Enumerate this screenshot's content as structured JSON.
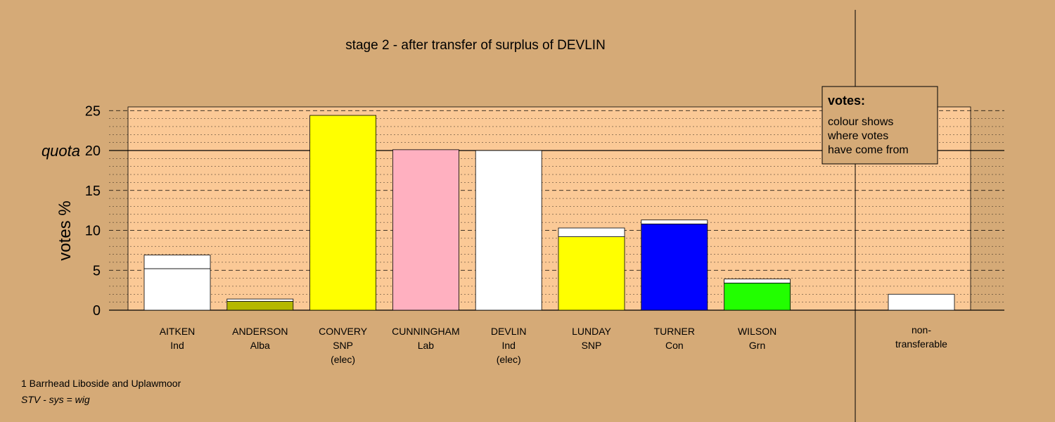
{
  "chart_data": {
    "type": "bar",
    "title": "stage 2 - after transfer of surplus of DEVLIN",
    "ylabel": "votes %",
    "quota_label": "quota",
    "quota": 20,
    "ylim": [
      0,
      25
    ],
    "yticks": [
      0,
      5,
      10,
      15,
      20,
      25
    ],
    "categories": [
      {
        "name": "AITKEN",
        "party": "Ind",
        "note": ""
      },
      {
        "name": "ANDERSON",
        "party": "Alba",
        "note": ""
      },
      {
        "name": "CONVERY",
        "party": "SNP",
        "note": "(elec)"
      },
      {
        "name": "CUNNINGHAM",
        "party": "Lab",
        "note": ""
      },
      {
        "name": "DEVLIN",
        "party": "Ind",
        "note": "(elec)"
      },
      {
        "name": "LUNDAY",
        "party": "SNP",
        "note": ""
      },
      {
        "name": "TURNER",
        "party": "Con",
        "note": ""
      },
      {
        "name": "WILSON",
        "party": "Grn",
        "note": ""
      }
    ],
    "bars": [
      {
        "segments": [
          {
            "value": 5.2,
            "color": "#ffffff"
          },
          {
            "value": 1.7,
            "color": "#ffffff"
          }
        ]
      },
      {
        "segments": [
          {
            "value": 1.1,
            "color": "#b5b800"
          },
          {
            "value": 0.3,
            "color": "#ffffff"
          }
        ]
      },
      {
        "segments": [
          {
            "value": 24.4,
            "color": "#ffff00"
          }
        ]
      },
      {
        "segments": [
          {
            "value": 20.1,
            "color": "#ffb0c0"
          }
        ]
      },
      {
        "segments": [
          {
            "value": 20.0,
            "color": "#ffffff"
          }
        ]
      },
      {
        "segments": [
          {
            "value": 9.2,
            "color": "#ffff00"
          },
          {
            "value": 1.1,
            "color": "#ffffff"
          }
        ]
      },
      {
        "segments": [
          {
            "value": 10.8,
            "color": "#0000ff"
          },
          {
            "value": 0.5,
            "color": "#ffffff"
          }
        ]
      },
      {
        "segments": [
          {
            "value": 3.4,
            "color": "#22ff00"
          },
          {
            "value": 0.5,
            "color": "#ffffff"
          }
        ]
      }
    ],
    "non_transferable": {
      "label_lines": [
        "non-",
        "transferable"
      ],
      "value": 2.0,
      "color": "#ffffff"
    },
    "legend": {
      "title": "votes:",
      "lines": [
        "colour shows",
        "where votes",
        "have come from"
      ],
      "placement": "top-right"
    },
    "grid": true
  },
  "footer": {
    "ward": "1 Barrhead Liboside and Uplawmoor",
    "system": "STV - sys = wig"
  }
}
